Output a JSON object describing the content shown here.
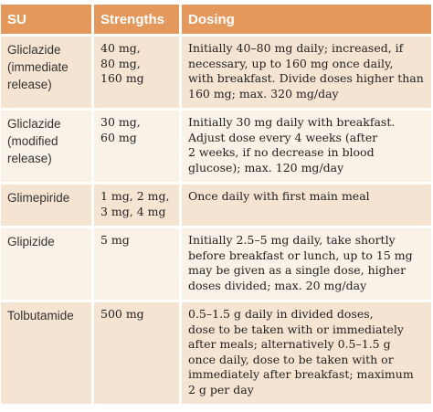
{
  "table": {
    "headers": [
      "SU",
      "Strengths",
      "Dosing"
    ],
    "rows": [
      {
        "drug": "Gliclazide\n(immediate\nrelease)",
        "strengths": "40 mg,\n80 mg,\n160 mg",
        "dosing": "Initially 40–80 mg daily; increased, if\nnecessary, up to 160 mg once daily,\nwith breakfast. Divide doses higher than\n160 mg; max. 320 mg/day"
      },
      {
        "drug": "Gliclazide\n(modified\nrelease)",
        "strengths": "30 mg,\n60 mg",
        "dosing": "Initially 30 mg daily with breakfast.\nAdjust dose every 4 weeks (after\n2 weeks, if no decrease in blood\nglucose); max. 120 mg/day"
      },
      {
        "drug": "Glimepiride",
        "strengths": "1 mg, 2 mg,\n3 mg, 4 mg",
        "dosing": "Once daily with first main meal"
      },
      {
        "drug": "Glipizide",
        "strengths": "5 mg",
        "dosing": "Initially 2.5–5 mg daily, take shortly\nbefore breakfast or lunch, up to 15 mg\nmay be given as a single dose, higher\ndoses divided; max. 20 mg/day"
      },
      {
        "drug": "Tolbutamide",
        "strengths": "500 mg",
        "dosing": "0.5–1.5 g daily in divided doses,\ndose to be taken with or immediately\nafter meals; alternatively 0.5–1.5 g\nonce daily, dose to be taken with or\nimmediately after breakfast; maximum\n2 g per day"
      }
    ]
  },
  "colors": {
    "header_bg": "#e4985c",
    "row_odd_bg": "#f6e4d2",
    "row_even_bg": "#faf1e7"
  }
}
